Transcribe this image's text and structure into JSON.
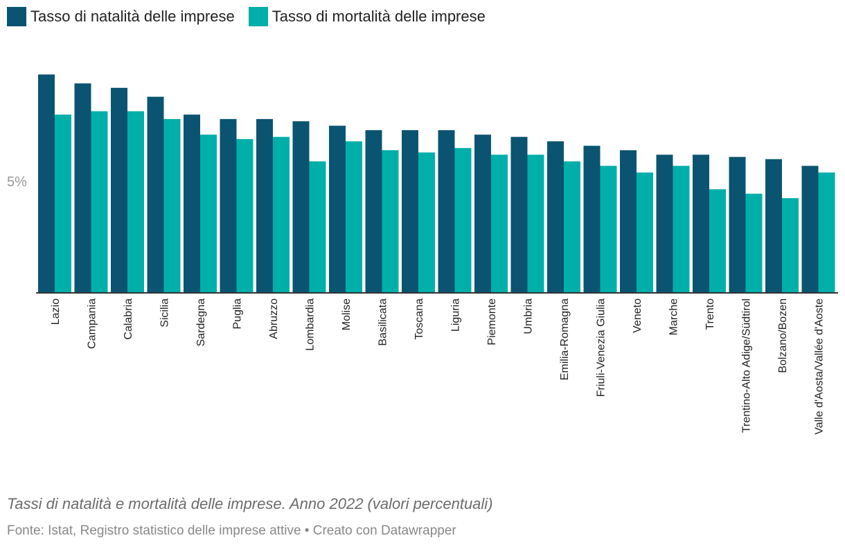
{
  "legend": {
    "natalita_label": "Tasso di natalità delle imprese",
    "mortalita_label": "Tasso di mortalità delle imprese"
  },
  "colors": {
    "natalita": "#0b5471",
    "mortalita": "#00afaa",
    "axis": "#333333",
    "tick_text": "#999999"
  },
  "caption": "Tassi di natalità e mortalità delle imprese. Anno 2022 (valori percentuali)",
  "source": "Fonte: Istat, Registro statistico delle imprese attive • Creato con Datawrapper",
  "chart_data": {
    "type": "bar",
    "categories": [
      "Lazio",
      "Campania",
      "Calabria",
      "Sicilia",
      "Sardegna",
      "Puglia",
      "Abruzzo",
      "Lombardia",
      "Molise",
      "Basilicata",
      "Toscana",
      "Liguria",
      "Piemonte",
      "Umbria",
      "Emilia-Romagna",
      "Friuli-Venezia Giulia",
      "Veneto",
      "Marche",
      "Trento",
      "Trentino-Alto Adige/Südtirol",
      "Bolzano/Bozen",
      "Valle d'Aosta/Vallée d'Aoste"
    ],
    "series": [
      {
        "name": "Tasso di natalità delle imprese",
        "values": [
          9.8,
          9.4,
          9.2,
          8.8,
          8.0,
          7.8,
          7.8,
          7.7,
          7.5,
          7.3,
          7.3,
          7.3,
          7.1,
          7.0,
          6.8,
          6.6,
          6.4,
          6.2,
          6.2,
          6.1,
          6.0,
          5.7
        ]
      },
      {
        "name": "Tasso di mortalità delle imprese",
        "values": [
          8.0,
          8.15,
          8.15,
          7.8,
          7.1,
          6.9,
          7.0,
          5.9,
          6.8,
          6.4,
          6.3,
          6.5,
          6.2,
          6.2,
          5.9,
          5.7,
          5.4,
          5.7,
          4.65,
          4.45,
          4.25,
          5.4
        ]
      }
    ],
    "y_ticks": [
      {
        "value": 5,
        "label": "5%"
      }
    ],
    "ylim": [
      0,
      10.5
    ],
    "grid": false,
    "legend_position": "top-left"
  }
}
